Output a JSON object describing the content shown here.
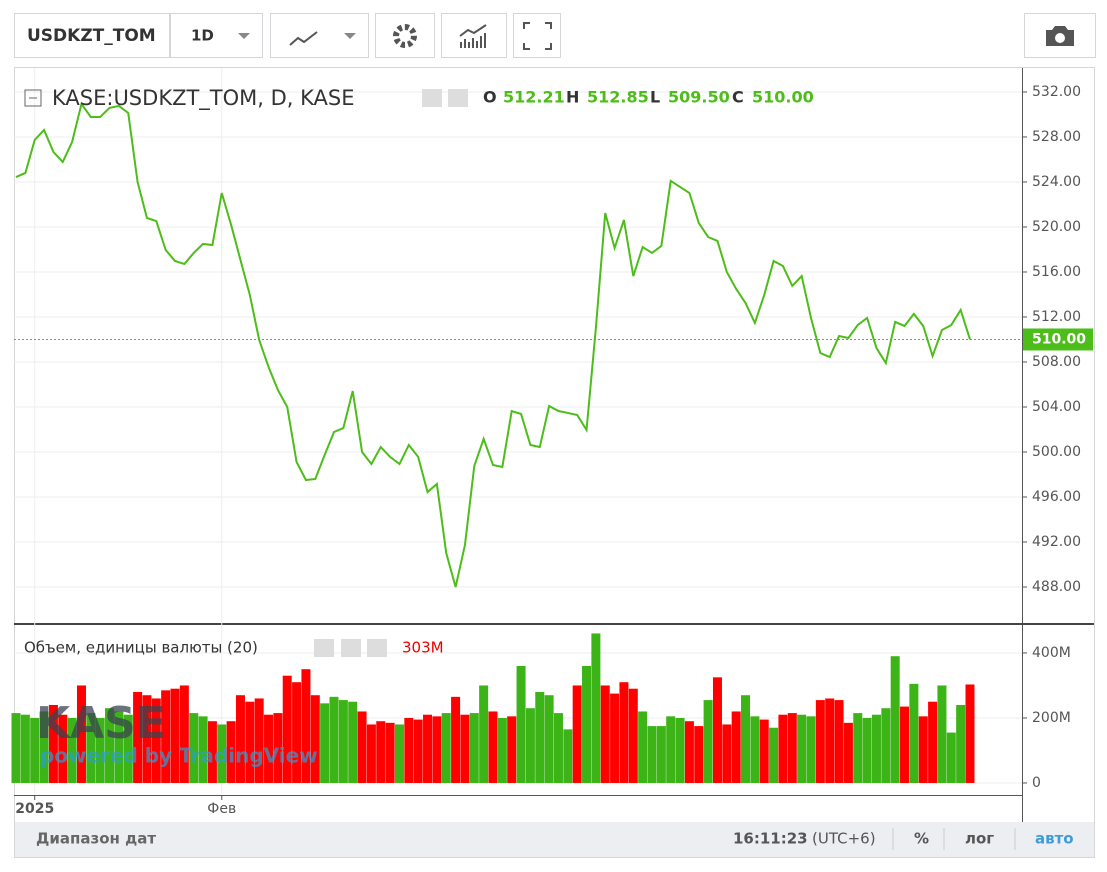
{
  "toolbar": {
    "symbol": "USDKZT_TOM",
    "interval": "1D"
  },
  "footer": {
    "date_range": "Диапазон дат",
    "time": "16:11:23",
    "timezone": "(UTC+6)",
    "percent": "%",
    "log": "лог",
    "auto": "авто"
  },
  "watermark": {
    "logo": "KASE",
    "powered": "powered by TradingView"
  },
  "chart_data": [
    {
      "type": "line",
      "title": "KASE:USDKZT_TOM, D, KASE",
      "color": "#4dbd1a",
      "ohlc": [
        {
          "name": "O",
          "value": 512.21,
          "label": "512.21"
        },
        {
          "name": "H",
          "value": 512.85,
          "label": "512.85"
        },
        {
          "name": "L",
          "value": 509.5,
          "label": "509.50"
        },
        {
          "name": "C",
          "value": 510,
          "label": "510.00"
        }
      ],
      "last_price": {
        "value": 510,
        "label": "510.00"
      },
      "categories": [
        null,
        null,
        "2025",
        null,
        null,
        null,
        null,
        null,
        null,
        null,
        null,
        null,
        null,
        null,
        null,
        null,
        null,
        null,
        null,
        null,
        null,
        null,
        "Фев",
        null,
        null,
        null,
        null,
        null,
        null,
        null,
        null,
        null,
        null,
        null,
        null,
        null,
        null,
        null,
        null,
        null,
        null,
        null,
        null,
        null,
        null,
        null,
        null,
        null,
        null,
        null,
        null,
        null,
        null,
        null,
        null,
        null,
        null,
        null,
        null,
        null,
        null,
        null,
        null,
        null,
        null,
        null,
        null,
        null,
        null,
        null,
        null,
        null,
        null,
        null,
        null,
        null,
        null,
        null,
        null,
        null,
        null,
        null,
        null,
        null,
        null,
        null,
        null,
        null,
        null,
        null,
        null,
        null,
        null,
        null,
        null,
        null,
        null,
        null,
        null,
        null,
        null,
        null,
        null
      ],
      "values": [
        524.44,
        524.8,
        527.73,
        528.62,
        526.67,
        525.78,
        527.56,
        530.93,
        529.78,
        529.78,
        530.58,
        530.76,
        530.13,
        524.0,
        520.8,
        520.53,
        517.96,
        516.98,
        516.71,
        517.69,
        518.49,
        518.4,
        523.02,
        520.18,
        517.07,
        513.96,
        509.96,
        507.56,
        505.51,
        504.0,
        499.11,
        497.51,
        497.6,
        499.73,
        501.78,
        502.13,
        505.42,
        500.0,
        498.93,
        500.44,
        499.56,
        498.93,
        500.62,
        499.56,
        496.44,
        497.16,
        491.02,
        488.0,
        491.73,
        498.76,
        501.16,
        498.84,
        498.67,
        503.64,
        503.38,
        500.62,
        500.44,
        504.09,
        503.64,
        503.47,
        503.29,
        501.96,
        511.02,
        521.24,
        518.13,
        520.62,
        515.64,
        518.22,
        517.69,
        518.31,
        524.09,
        523.56,
        523.02,
        520.36,
        519.11,
        518.76,
        516.0,
        514.49,
        513.24,
        511.47,
        513.96,
        516.98,
        516.53,
        514.76,
        515.64,
        511.91,
        508.8,
        508.44,
        510.31,
        510.13,
        511.29,
        511.91,
        509.24,
        507.91,
        511.56,
        511.2,
        512.27,
        511.2,
        508.53,
        510.84,
        511.29,
        512.62,
        510.0
      ],
      "ylim": [
        484.8,
        534.13
      ],
      "yticks": [
        {
          "value": 488,
          "label": "488.00"
        },
        {
          "value": 492,
          "label": "492.00"
        },
        {
          "value": 496,
          "label": "496.00"
        },
        {
          "value": 500,
          "label": "500.00"
        },
        {
          "value": 504,
          "label": "504.00"
        },
        {
          "value": 508,
          "label": "508.00"
        },
        {
          "value": 512,
          "label": "512.00"
        },
        {
          "value": 516,
          "label": "516.00"
        },
        {
          "value": 520,
          "label": "520.00"
        },
        {
          "value": 524,
          "label": "524.00"
        },
        {
          "value": 528,
          "label": "528.00"
        },
        {
          "value": 532,
          "label": "532.00"
        }
      ],
      "grid": true
    },
    {
      "type": "bar",
      "title": "Объем, единицы валюты (20)",
      "current_label": "303M",
      "values": [
        215,
        210,
        200,
        220,
        240,
        210,
        200,
        300,
        215,
        200,
        230,
        220,
        210,
        280,
        270,
        260,
        285,
        290,
        300,
        215,
        205,
        190,
        180,
        190,
        270,
        250,
        260,
        210,
        215,
        330,
        310,
        350,
        270,
        245,
        265,
        255,
        250,
        220,
        180,
        190,
        185,
        180,
        200,
        195,
        210,
        205,
        215,
        265,
        210,
        215,
        300,
        220,
        200,
        205,
        360,
        230,
        280,
        270,
        215,
        165,
        300,
        360,
        460,
        300,
        275,
        310,
        290,
        220,
        175,
        175,
        205,
        200,
        190,
        175,
        255,
        325,
        180,
        220,
        270,
        205,
        195,
        170,
        210,
        215,
        210,
        205,
        255,
        260,
        255,
        185,
        215,
        200,
        210,
        230,
        390,
        235,
        305,
        205,
        250,
        300,
        155,
        240,
        303
      ],
      "colors": [
        "#3cb317",
        "#3cb317",
        "#3cb317",
        "#3cb317",
        "#ff0000",
        "#ff0000",
        "#3cb317",
        "#ff0000",
        "#3cb317",
        "#3cb317",
        "#3cb317",
        "#3cb317",
        "#3cb317",
        "#ff0000",
        "#ff0000",
        "#ff0000",
        "#ff0000",
        "#ff0000",
        "#ff0000",
        "#3cb317",
        "#3cb317",
        "#ff0000",
        "#3cb317",
        "#ff0000",
        "#ff0000",
        "#ff0000",
        "#ff0000",
        "#ff0000",
        "#ff0000",
        "#ff0000",
        "#ff0000",
        "#ff0000",
        "#ff0000",
        "#3cb317",
        "#3cb317",
        "#3cb317",
        "#3cb317",
        "#ff0000",
        "#ff0000",
        "#ff0000",
        "#ff0000",
        "#3cb317",
        "#ff0000",
        "#ff0000",
        "#ff0000",
        "#ff0000",
        "#3cb317",
        "#ff0000",
        "#ff0000",
        "#3cb317",
        "#3cb317",
        "#ff0000",
        "#3cb317",
        "#ff0000",
        "#3cb317",
        "#3cb317",
        "#3cb317",
        "#3cb317",
        "#3cb317",
        "#3cb317",
        "#ff0000",
        "#3cb317",
        "#3cb317",
        "#ff0000",
        "#ff0000",
        "#ff0000",
        "#ff0000",
        "#3cb317",
        "#3cb317",
        "#3cb317",
        "#3cb317",
        "#3cb317",
        "#ff0000",
        "#ff0000",
        "#3cb317",
        "#ff0000",
        "#ff0000",
        "#ff0000",
        "#3cb317",
        "#3cb317",
        "#ff0000",
        "#3cb317",
        "#ff0000",
        "#ff0000",
        "#3cb317",
        "#3cb317",
        "#ff0000",
        "#ff0000",
        "#ff0000",
        "#ff0000",
        "#3cb317",
        "#3cb317",
        "#3cb317",
        "#3cb317",
        "#3cb317",
        "#ff0000",
        "#3cb317",
        "#ff0000",
        "#ff0000",
        "#3cb317",
        "#3cb317",
        "#3cb317",
        "#ff0000"
      ],
      "ylim": [
        -37,
        486
      ],
      "yticks": [
        0,
        {
          "value": 200,
          "label": "200M"
        },
        {
          "value": 400,
          "label": "400M"
        }
      ],
      "grid": true
    }
  ]
}
